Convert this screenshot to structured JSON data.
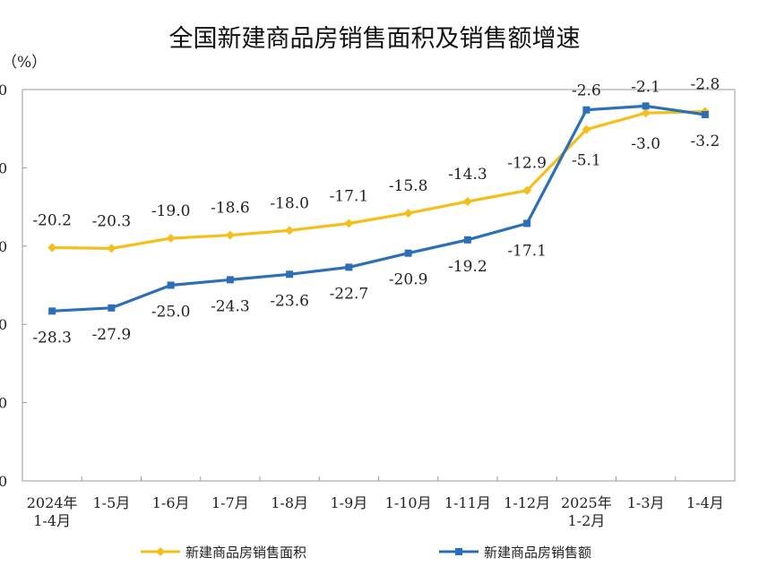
{
  "chart_data": {
    "type": "line",
    "title": "全国新建商品房销售面积及销售额增速",
    "unit_label": "（%）",
    "categories": [
      [
        "2024年",
        "1-4月"
      ],
      [
        "1-5月"
      ],
      [
        "1-6月"
      ],
      [
        "1-7月"
      ],
      [
        "1-8月"
      ],
      [
        "1-9月"
      ],
      [
        "1-10月"
      ],
      [
        "1-11月"
      ],
      [
        "1-12月"
      ],
      [
        "2025年",
        "1-2月"
      ],
      [
        "1-3月"
      ],
      [
        "1-4月"
      ]
    ],
    "y_tick_labels": [
      "0",
      "0",
      "0",
      "0",
      "0",
      "0"
    ],
    "ylim": [
      -50,
      0
    ],
    "grid": false,
    "legend_position": "bottom",
    "series": [
      {
        "name": "新建商品房销售面积",
        "color": "#F5BE1A",
        "marker": "diamond",
        "values": [
          -20.2,
          -20.3,
          -19.0,
          -18.6,
          -18.0,
          -17.1,
          -15.8,
          -14.3,
          -12.9,
          -5.1,
          -3.0,
          -2.8
        ],
        "labels": [
          "-20.2",
          "-20.3",
          "-19.0",
          "-18.6",
          "-18.0",
          "-17.1",
          "-15.8",
          "-14.3",
          "-12.9",
          "-5.1",
          "-3.0",
          "-2.8"
        ]
      },
      {
        "name": "新建商品房销售额",
        "color": "#2C6FB7",
        "marker": "square",
        "values": [
          -28.3,
          -27.9,
          -25.0,
          -24.3,
          -23.6,
          -22.7,
          -20.9,
          -19.2,
          -17.1,
          -2.6,
          -2.1,
          -3.2
        ],
        "labels": [
          "-28.3",
          "-27.9",
          "-25.0",
          "-24.3",
          "-23.6",
          "-22.7",
          "-20.9",
          "-19.2",
          "-17.1",
          "-2.6",
          "-2.1",
          "-3.2"
        ]
      }
    ]
  }
}
